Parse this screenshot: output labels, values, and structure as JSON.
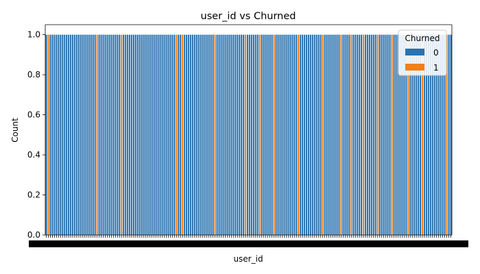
{
  "chart_data": {
    "type": "bar",
    "title": "user_id vs Churned",
    "xlabel": "user_id",
    "ylabel": "Count",
    "ylim": [
      0,
      1.05
    ],
    "yticks": [
      0.0,
      0.2,
      0.4,
      0.6,
      0.8,
      1.0
    ],
    "ytick_labels": [
      "0.0",
      "0.2",
      "0.4",
      "0.6",
      "0.8",
      "1.0"
    ],
    "grid": false,
    "legend": {
      "title": "Churned",
      "placement": "top-right",
      "entries": [
        {
          "label": "0",
          "color": "#2a73b0"
        },
        {
          "label": "1",
          "color": "#f0801a"
        }
      ]
    },
    "num_categories": 200,
    "category_labels_legible": false,
    "churned_category_indices": [
      1,
      25,
      37,
      64,
      67,
      83,
      98,
      105,
      112,
      124,
      136,
      145,
      150,
      156,
      163,
      170,
      178,
      185,
      197
    ],
    "series": [
      {
        "name": "0",
        "value_per_category": 1.0
      },
      {
        "name": "1",
        "value_per_category": 1.0
      }
    ]
  }
}
